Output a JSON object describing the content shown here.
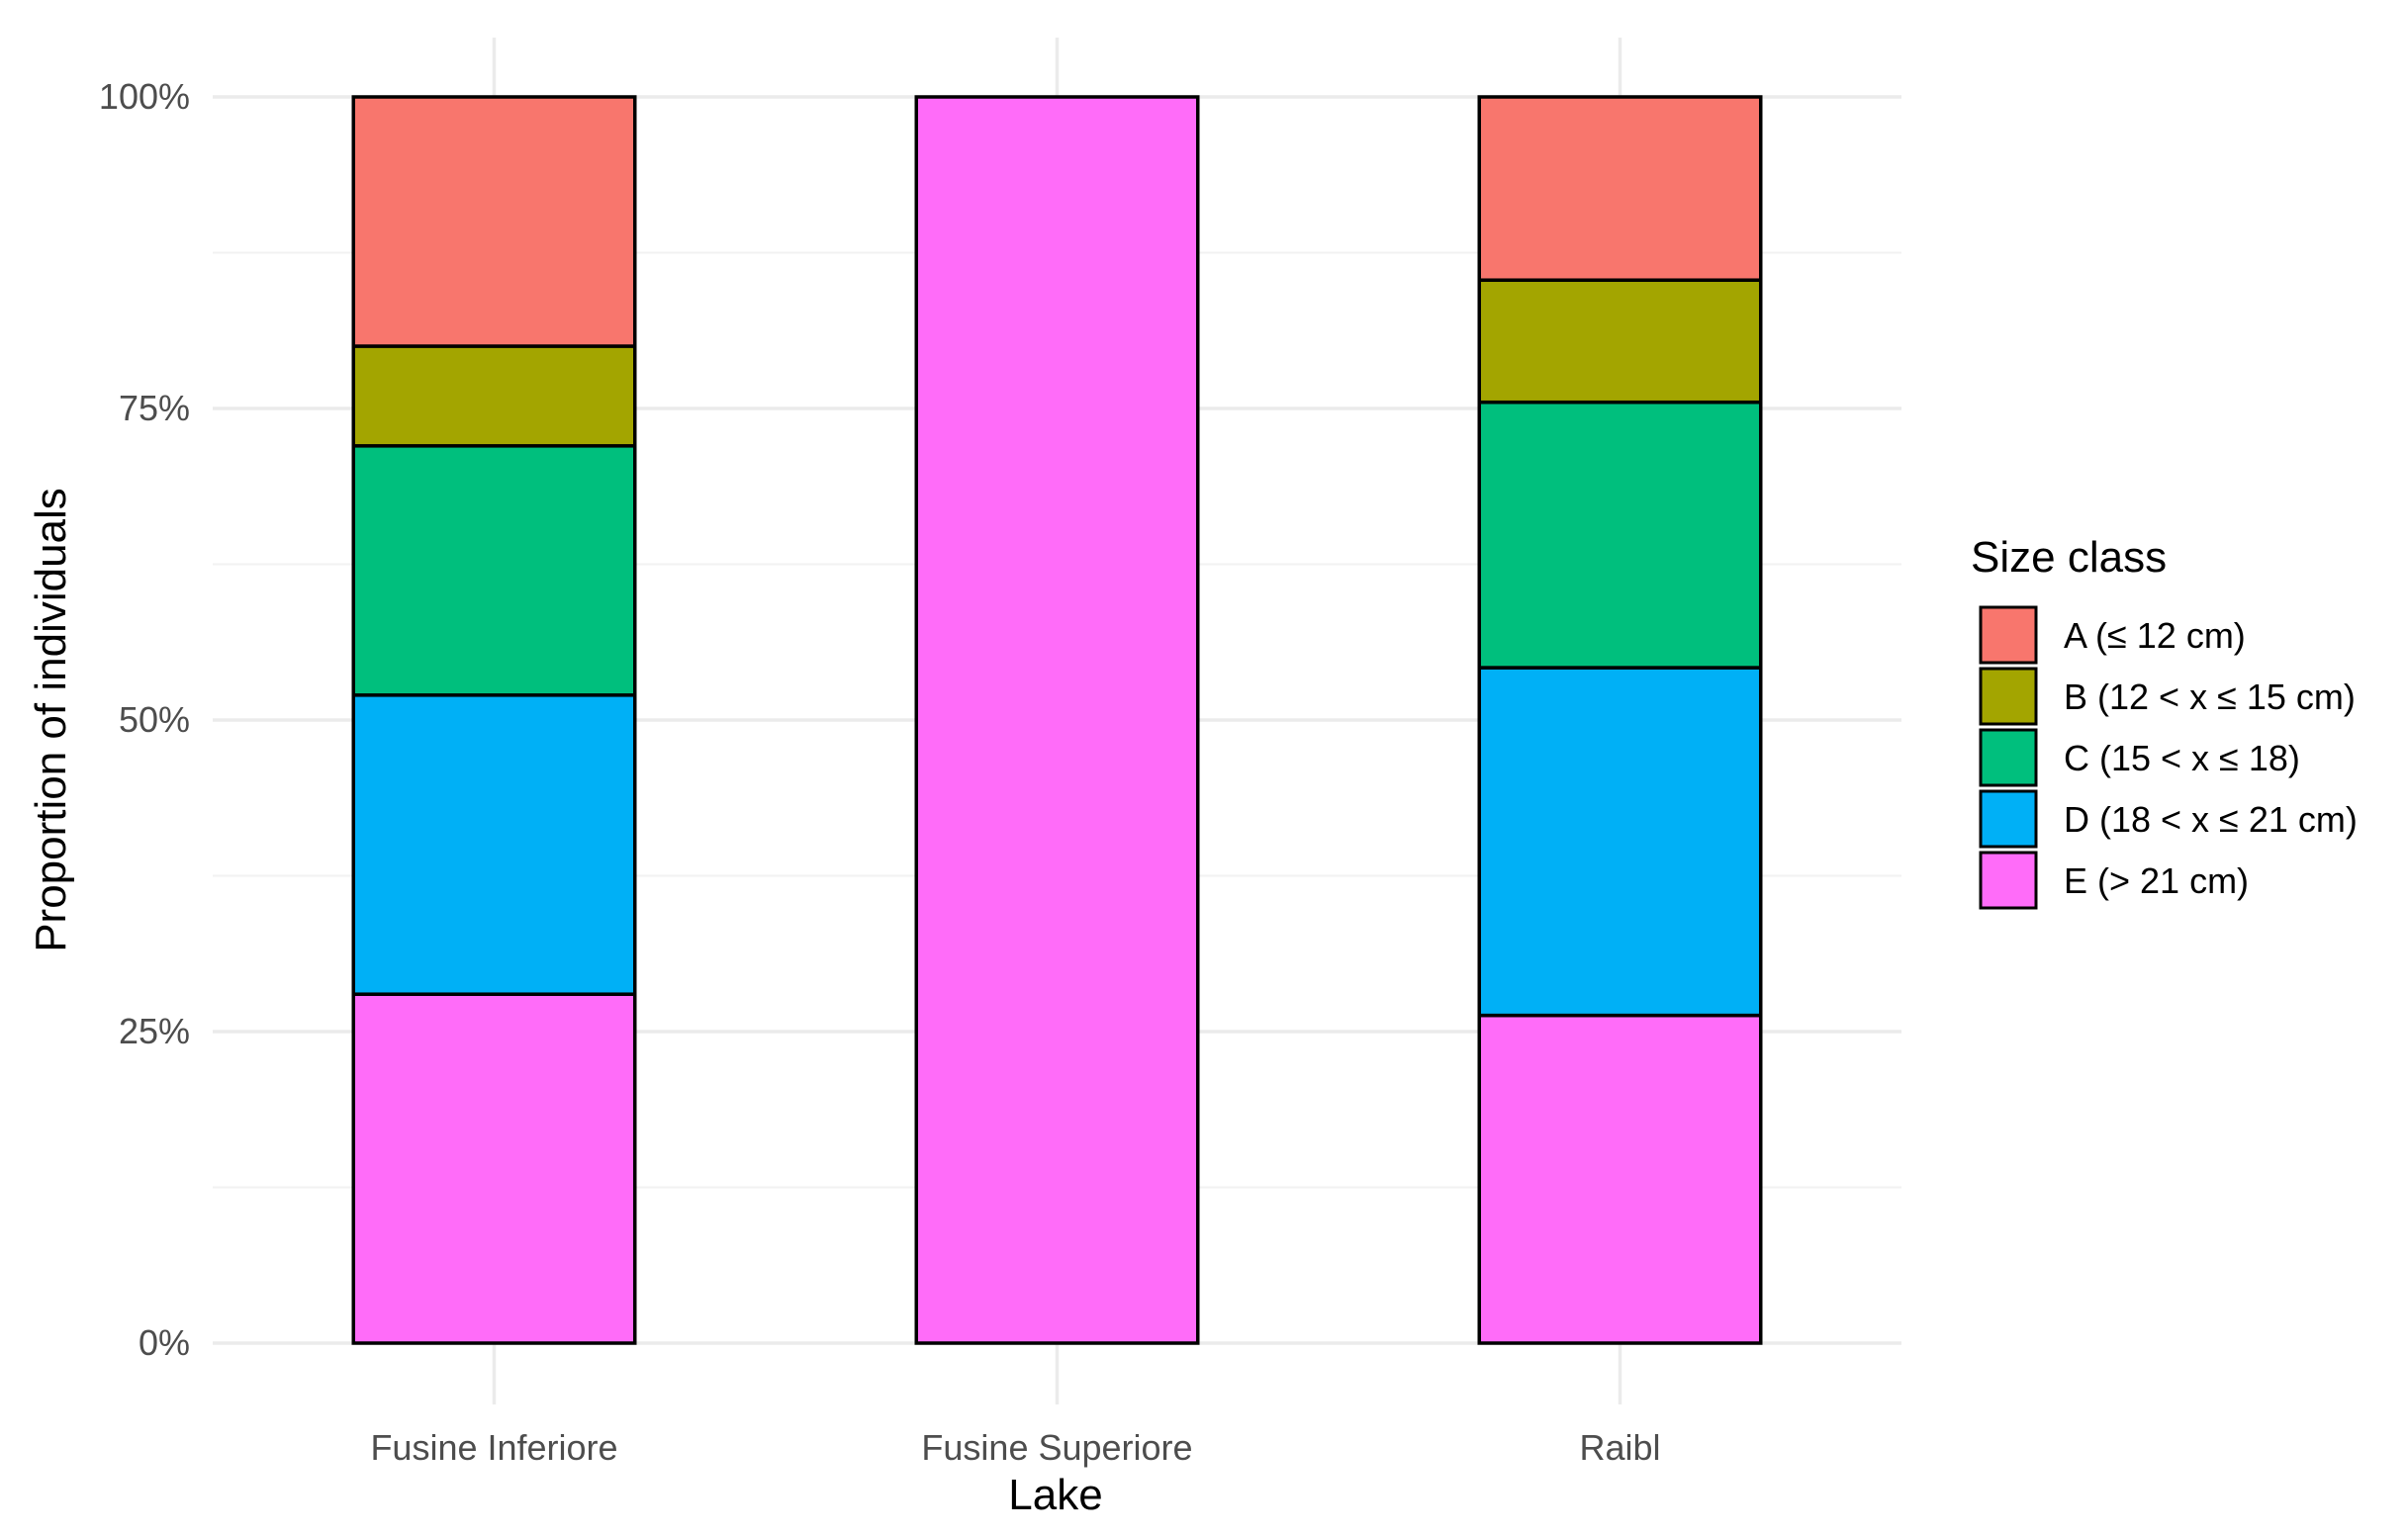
{
  "chart_data": {
    "type": "bar",
    "stacked": true,
    "title": "",
    "xlabel": "Lake",
    "ylabel": "Proportion of individuals",
    "categories": [
      "Fusine Inferiore",
      "Fusine Superiore",
      "Raibl"
    ],
    "ylim": [
      0,
      1
    ],
    "yticks": [
      0,
      0.25,
      0.5,
      0.75,
      1
    ],
    "ytick_labels": [
      "0%",
      "25%",
      "50%",
      "75%",
      "100%"
    ],
    "grid": true,
    "legend": {
      "title": "Size class",
      "position": "right"
    },
    "series": [
      {
        "name": "E (> 21 cm)",
        "color": "#FF6CF9",
        "values": [
          0.28,
          1.0,
          0.263
        ]
      },
      {
        "name": "D (18 < x ≤ 21 cm)",
        "color": "#00B0F6",
        "values": [
          0.24,
          0.0,
          0.279
        ]
      },
      {
        "name": "C (15 < x ≤ 18)",
        "color": "#00BF7D",
        "values": [
          0.2,
          0.0,
          0.213
        ]
      },
      {
        "name": "B (12 < x ≤ 15 cm)",
        "color": "#A3A500",
        "values": [
          0.08,
          0.0,
          0.098
        ]
      },
      {
        "name": "A (≤ 12 cm)",
        "color": "#F8766D",
        "values": [
          0.2,
          0.0,
          0.147
        ]
      }
    ],
    "legend_order": [
      "A (≤ 12 cm)",
      "B (12 < x ≤ 15 cm)",
      "C (15 < x ≤ 18)",
      "D (18 < x ≤ 21 cm)",
      "E (> 21 cm)"
    ]
  }
}
